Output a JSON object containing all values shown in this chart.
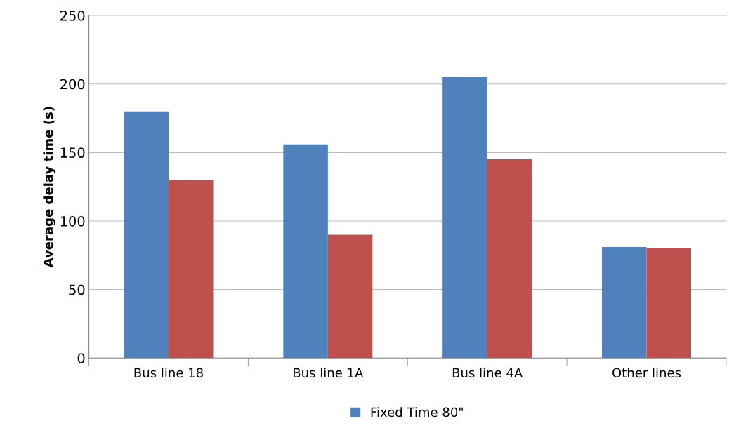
{
  "chart_data": {
    "type": "bar",
    "ylabel": "Average delay time (s)",
    "categories": [
      "Bus line 18",
      "Bus line 1A",
      "Bus line 4A",
      "Other lines"
    ],
    "series": [
      {
        "name": "Fixed Time 80\"",
        "color": "#4f81bd",
        "values": [
          180,
          156,
          205,
          81
        ]
      },
      {
        "color": "#c0504d",
        "values": [
          130,
          90,
          145,
          80
        ]
      }
    ],
    "ylim": [
      0,
      250
    ],
    "yticks": [
      0,
      50,
      100,
      150,
      200,
      250
    ],
    "grid": "y",
    "legend": "bottom"
  }
}
